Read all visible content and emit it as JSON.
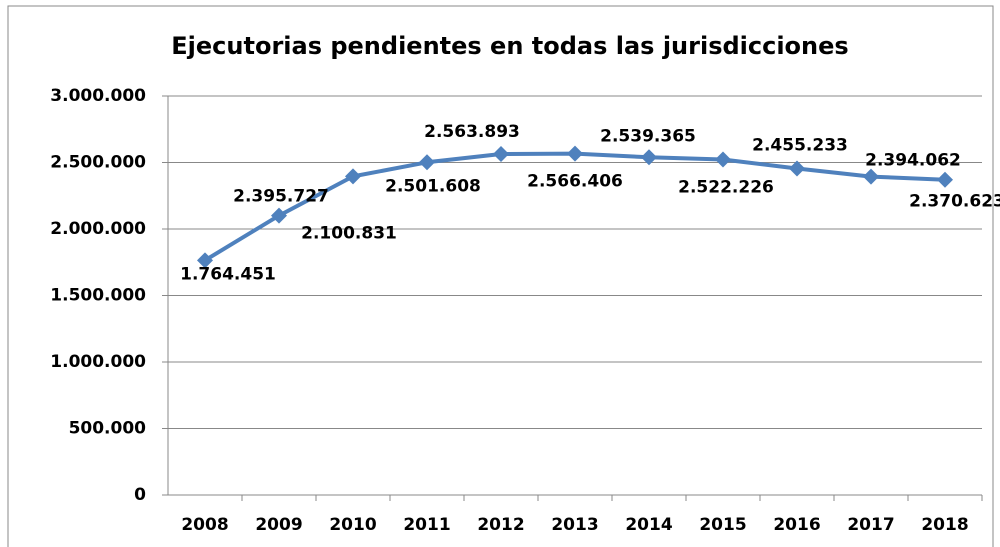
{
  "chart_data": {
    "type": "line",
    "title": "Ejecutorias pendientes en todas las jurisdicciones",
    "categories": [
      "2008",
      "2009",
      "2010",
      "2011",
      "2012",
      "2013",
      "2014",
      "2015",
      "2016",
      "2017",
      "2018"
    ],
    "series": [
      {
        "name": "Ejecutorias pendientes",
        "color": "#4f81bd",
        "values": [
          1764451,
          2100831,
          2395727,
          2501608,
          2563893,
          2566406,
          2539365,
          2522226,
          2455233,
          2394062,
          2370623
        ],
        "value_labels": [
          "1.764.451",
          "2.100.831",
          "2.395.727",
          "2.501.608",
          "2.563.893",
          "2.566.406",
          "2.539.365",
          "2.522.226",
          "2.455.233",
          "2.394.062",
          "2.370.623"
        ]
      }
    ],
    "ylim": [
      0,
      3000000
    ],
    "yticks": [
      0,
      {
        "value": 500000,
        "label": "500.000"
      },
      {
        "value": 1000000,
        "label": "1.000.000"
      },
      {
        "value": 1500000,
        "label": "1.500.000"
      },
      {
        "value": 2000000,
        "label": "2.000.000"
      },
      {
        "value": 2500000,
        "label": "2.500.000"
      },
      {
        "value": 3000000,
        "label": "3.000.000"
      }
    ],
    "grid": true
  }
}
